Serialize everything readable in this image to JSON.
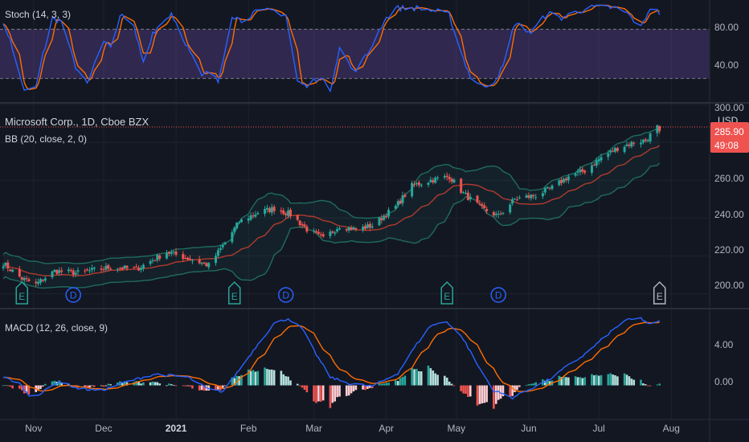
{
  "main": {
    "symbol_title": "Microsoft Corp., 1D, Cboe BZX",
    "indicator_label": "BB (20, close, 2, 0)",
    "currency": "USD",
    "price_badge": {
      "price": "285.90",
      "countdown": "49:08"
    },
    "y_ticks": [
      "300.00",
      "260.00",
      "240.00",
      "220.00",
      "200.00"
    ],
    "events": [
      {
        "type": "E",
        "date": "Oct 27"
      },
      {
        "type": "D",
        "date": "Nov 18"
      },
      {
        "type": "E",
        "date": "Jan 26"
      },
      {
        "type": "D",
        "date": "Feb 17"
      },
      {
        "type": "E",
        "date": "Apr 27"
      },
      {
        "type": "D",
        "date": "May 19"
      },
      {
        "type": "E",
        "date": "Jul 27"
      }
    ]
  },
  "stoch": {
    "label": "Stoch (14, 3, 3)",
    "y_ticks": [
      "80.00",
      "40.00"
    ],
    "overbought": 80,
    "oversold": 20
  },
  "macd": {
    "label": "MACD (12, 26, close, 9)",
    "y_ticks": [
      "4.00",
      "0.00"
    ]
  },
  "x_axis": {
    "labels": [
      "Nov",
      "Dec",
      "2021",
      "Feb",
      "Mar",
      "Apr",
      "May",
      "Jun",
      "Jul",
      "Aug"
    ]
  },
  "colors": {
    "up": "#26a69a",
    "down": "#ef5350",
    "background": "#131722",
    "stoch_k": "#2962ff",
    "stoch_d": "#ff6d00",
    "stoch_band": "#7e57c2",
    "bb_basis": "#b23a2e",
    "bb_band": "#1f6b5e",
    "macd_line": "#2962ff",
    "signal_line": "#ff6d00"
  },
  "chart_data": [
    {
      "type": "candlestick",
      "title": "Microsoft Corp., 1D, Cboe BZX",
      "x_range": [
        "Oct 19, 2020",
        "Jul 27, 2021"
      ],
      "ylim": [
        193,
        300
      ],
      "price_anchors": [
        [
          "Oct 19",
          216
        ],
        [
          "Oct 27",
          208
        ],
        [
          "Nov 2",
          205
        ],
        [
          "Nov 10",
          212
        ],
        [
          "Nov 20",
          211
        ],
        [
          "Dec 4",
          214
        ],
        [
          "Dec 15",
          213
        ],
        [
          "Dec 28",
          222
        ],
        [
          "Jan 8",
          218
        ],
        [
          "Jan 15",
          215
        ],
        [
          "Jan 22",
          227
        ],
        [
          "Jan 28",
          238
        ],
        [
          "Feb 5",
          243
        ],
        [
          "Feb 12",
          245
        ],
        [
          "Feb 19",
          242
        ],
        [
          "Feb 26",
          234
        ],
        [
          "Mar 5",
          229
        ],
        [
          "Mar 12",
          236
        ],
        [
          "Mar 19",
          234
        ],
        [
          "Mar 26",
          236
        ],
        [
          "Apr 5",
          246
        ],
        [
          "Apr 12",
          257
        ],
        [
          "Apr 20",
          260
        ],
        [
          "Apr 28",
          262
        ],
        [
          "May 4",
          253
        ],
        [
          "May 12",
          245
        ],
        [
          "May 19",
          241
        ],
        [
          "May 26",
          250
        ],
        [
          "Jun 4",
          252
        ],
        [
          "Jun 11",
          256
        ],
        [
          "Jun 18",
          262
        ],
        [
          "Jun 25",
          265
        ],
        [
          "Jul 2",
          272
        ],
        [
          "Jul 9",
          277
        ],
        [
          "Jul 16",
          280
        ],
        [
          "Jul 21",
          281
        ],
        [
          "Jul 26",
          288
        ],
        [
          "Jul 27",
          286
        ]
      ],
      "last_price": 285.9
    },
    {
      "type": "line",
      "title": "Stoch (14, 3, 3)",
      "ylim": [
        0,
        100
      ],
      "k_anchors": [
        [
          "Oct 19",
          78
        ],
        [
          "Oct 23",
          55
        ],
        [
          "Oct 28",
          12
        ],
        [
          "Nov 2",
          18
        ],
        [
          "Nov 9",
          85
        ],
        [
          "Nov 13",
          80
        ],
        [
          "Nov 19",
          35
        ],
        [
          "Nov 24",
          20
        ],
        [
          "Dec 1",
          60
        ],
        [
          "Dec 4",
          55
        ],
        [
          "Dec 8",
          88
        ],
        [
          "Dec 14",
          75
        ],
        [
          "Dec 18",
          40
        ],
        [
          "Dec 22",
          70
        ],
        [
          "Dec 30",
          90
        ],
        [
          "Jan 5",
          60
        ],
        [
          "Jan 12",
          25
        ],
        [
          "Jan 15",
          30
        ],
        [
          "Jan 19",
          20
        ],
        [
          "Jan 25",
          88
        ],
        [
          "Jan 29",
          82
        ],
        [
          "Feb 3",
          90
        ],
        [
          "Feb 11",
          93
        ],
        [
          "Feb 17",
          88
        ],
        [
          "Feb 22",
          20
        ],
        [
          "Feb 26",
          15
        ],
        [
          "Mar 3",
          25
        ],
        [
          "Mar 8",
          12
        ],
        [
          "Mar 12",
          55
        ],
        [
          "Mar 18",
          30
        ],
        [
          "Mar 24",
          48
        ],
        [
          "Mar 31",
          82
        ],
        [
          "Apr 5",
          95
        ],
        [
          "Apr 15",
          95
        ],
        [
          "Apr 22",
          92
        ],
        [
          "Apr 28",
          88
        ],
        [
          "May 3",
          50
        ],
        [
          "May 7",
          25
        ],
        [
          "May 12",
          15
        ],
        [
          "May 17",
          20
        ],
        [
          "May 21",
          35
        ],
        [
          "May 26",
          80
        ],
        [
          "Jun 2",
          70
        ],
        [
          "Jun 9",
          90
        ],
        [
          "Jun 15",
          85
        ],
        [
          "Jun 22",
          92
        ],
        [
          "Jul 1",
          97
        ],
        [
          "Jul 8",
          95
        ],
        [
          "Jul 13",
          90
        ],
        [
          "Jul 19",
          75
        ],
        [
          "Jul 23",
          96
        ],
        [
          "Jul 27",
          90
        ]
      ]
    },
    {
      "type": "line",
      "title": "MACD (12, 26, close, 9)",
      "ylim": [
        -3,
        7.3
      ],
      "macd_anchors": [
        [
          "Oct 19",
          0.8
        ],
        [
          "Oct 26",
          0.2
        ],
        [
          "Oct 30",
          -1.0
        ],
        [
          "Nov 4",
          -0.8
        ],
        [
          "Nov 12",
          0.4
        ],
        [
          "Nov 20",
          -0.3
        ],
        [
          "Nov 30",
          -0.5
        ],
        [
          "Dec 10",
          0.3
        ],
        [
          "Dec 23",
          1.1
        ],
        [
          "Jan 6",
          0.8
        ],
        [
          "Jan 15",
          -0.4
        ],
        [
          "Jan 21",
          -0.6
        ],
        [
          "Jan 29",
          1.8
        ],
        [
          "Feb 5",
          4.0
        ],
        [
          "Feb 12",
          6.0
        ],
        [
          "Feb 18",
          6.5
        ],
        [
          "Feb 24",
          5.5
        ],
        [
          "Mar 2",
          3.0
        ],
        [
          "Mar 8",
          0.8
        ],
        [
          "Mar 16",
          0.2
        ],
        [
          "Mar 26",
          -0.1
        ],
        [
          "Apr 6",
          1.2
        ],
        [
          "Apr 14",
          4.0
        ],
        [
          "Apr 20",
          5.8
        ],
        [
          "Apr 27",
          6.2
        ],
        [
          "May 4",
          4.5
        ],
        [
          "May 10",
          2.0
        ],
        [
          "May 17",
          -0.5
        ],
        [
          "May 25",
          -1.2
        ],
        [
          "Jun 2",
          -0.3
        ],
        [
          "Jun 10",
          0.6
        ],
        [
          "Jun 17",
          1.8
        ],
        [
          "Jun 25",
          3.0
        ],
        [
          "Jul 5",
          5.0
        ],
        [
          "Jul 12",
          6.3
        ],
        [
          "Jul 19",
          6.5
        ],
        [
          "Jul 23",
          5.9
        ],
        [
          "Jul 27",
          6.2
        ]
      ]
    }
  ]
}
